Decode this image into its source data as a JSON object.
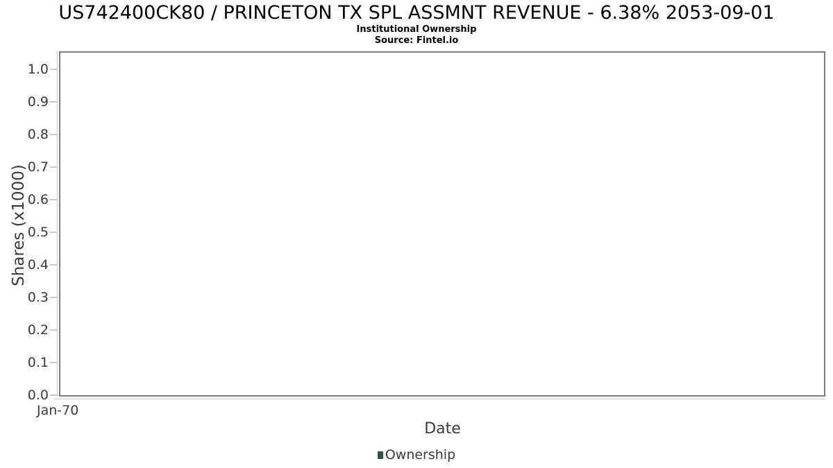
{
  "header": {
    "title": "US742400CK80 / PRINCETON TX SPL ASSMNT REVENUE - 6.38% 2053-09-01",
    "subtitle": "Institutional Ownership",
    "source": "Source: Fintel.io"
  },
  "chart_data": {
    "type": "line",
    "title": "US742400CK80 / PRINCETON TX SPL ASSMNT REVENUE - 6.38% 2053-09-01",
    "subtitle": "Institutional Ownership",
    "source": "Source: Fintel.io",
    "xlabel": "Date",
    "ylabel": "Shares (x1000)",
    "x_ticks": [
      "Jan-70"
    ],
    "y_ticks": [
      "0.0",
      "0.1",
      "0.2",
      "0.3",
      "0.4",
      "0.5",
      "0.6",
      "0.7",
      "0.8",
      "0.9",
      "1.0"
    ],
    "ylim": [
      0.0,
      1.06
    ],
    "grid": true,
    "legend_position": "bottom-center",
    "series": [
      {
        "name": "Ownership",
        "color": "#245935",
        "marker": "square",
        "values": []
      }
    ]
  },
  "colors": {
    "background": "#ffffff",
    "frame_border": "#7e7e7e",
    "gridline": "#e4e4e4",
    "axis_line": "#c9c9c9",
    "tick_text": "#3b3b3b",
    "title_text": "#000000",
    "legend_swatch": "#245935"
  }
}
